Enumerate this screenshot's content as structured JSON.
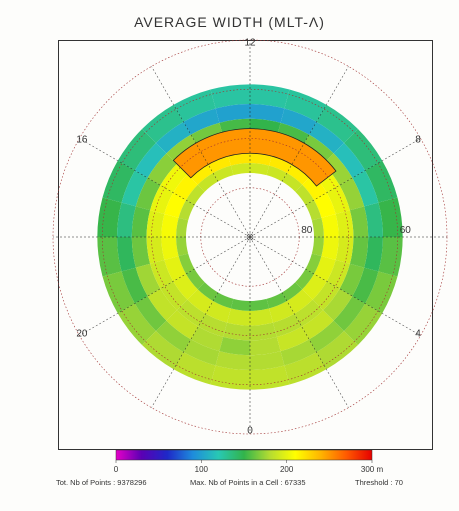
{
  "chart_data": {
    "type": "heatmap",
    "projection": "polar",
    "title": "AVERAGE WIDTH  (MLT-Λ)",
    "mlt_labels": [
      {
        "text": "12",
        "mlt": 12
      },
      {
        "text": "8",
        "mlt": 8
      },
      {
        "text": "16",
        "mlt": 16
      },
      {
        "text": "4",
        "mlt": 4
      },
      {
        "text": "20",
        "mlt": 20
      },
      {
        "text": "0",
        "mlt": 0
      }
    ],
    "lat_labels": [
      {
        "text": "60",
        "lat": 60
      },
      {
        "text": "80",
        "lat": 80
      }
    ],
    "lat_range": [
      50,
      90
    ],
    "colorbar": {
      "min": 0,
      "max": 300,
      "unit": "m",
      "ticks": [
        {
          "value": 0,
          "text": "0"
        },
        {
          "value": 100,
          "text": "100"
        },
        {
          "value": 200,
          "text": "200"
        },
        {
          "value": 300,
          "text": "300 m"
        }
      ],
      "stops": [
        "#e600c8",
        "#5a00b4",
        "#1e28c8",
        "#1e8cdc",
        "#28c8b4",
        "#32b44b",
        "#b4dc32",
        "#ffff00",
        "#ffb400",
        "#ff5a00",
        "#e60000"
      ]
    },
    "rings": [
      {
        "lat_outer": 59,
        "lat_inner": 63,
        "value": 155
      },
      {
        "lat_outer": 63,
        "lat_inner": 66,
        "value": 140
      },
      {
        "lat_outer": 66,
        "lat_inner": 69,
        "value": 170
      },
      {
        "lat_outer": 69,
        "lat_inner": 72,
        "value": 195
      },
      {
        "lat_outer": 72,
        "lat_inner": 75,
        "value": 205
      },
      {
        "lat_outer": 75,
        "lat_inner": 77,
        "value": 175
      }
    ],
    "highlight": {
      "lat_outer": 68,
      "lat_inner": 73,
      "mlt_start": 8.5,
      "mlt_end": 15,
      "value": 250
    }
  },
  "footer": {
    "total_label": "Tot. Nb of Points :",
    "total_value": "9378296",
    "max_label": "Max. Nb of Points in a Cell :",
    "max_value": "67335",
    "threshold_label": "Threshold :",
    "threshold_value": "70"
  }
}
